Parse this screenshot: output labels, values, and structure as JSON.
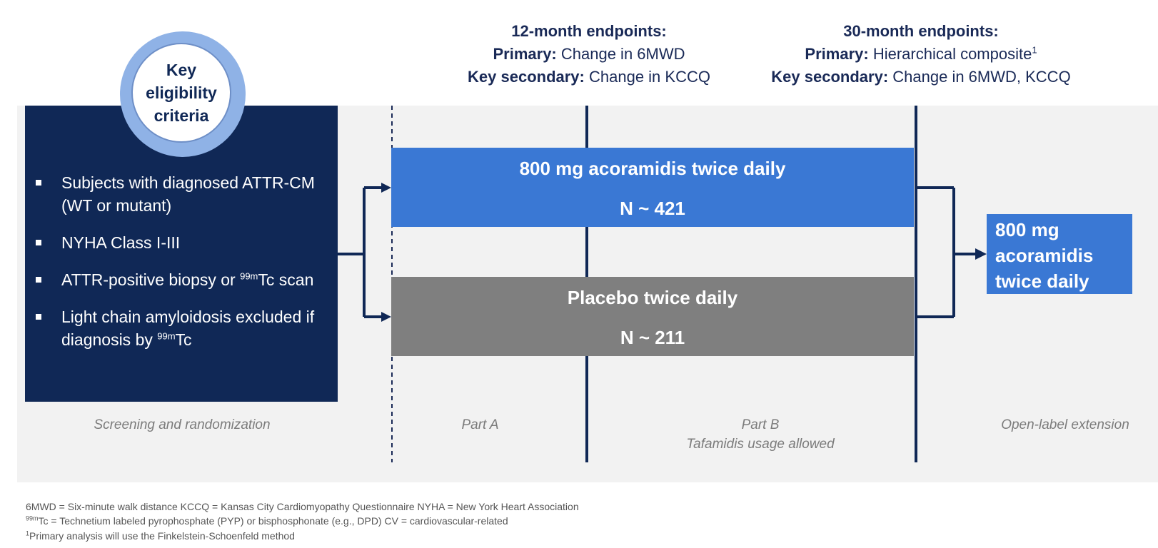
{
  "endpoints_12": {
    "title": "12-month endpoints:",
    "primary_label": "Primary:",
    "primary_value": " Change in 6MWD",
    "secondary_label": "Key secondary:",
    "secondary_value": " Change in KCCQ"
  },
  "endpoints_30": {
    "title": "30-month endpoints:",
    "primary_label": "Primary:",
    "primary_value": " Hierarchical composite",
    "primary_footnote": "1",
    "secondary_label": "Key secondary:",
    "secondary_value": " Change in 6MWD, KCCQ"
  },
  "eligibility": {
    "circle_line1": "Key",
    "circle_line2": "eligibility",
    "circle_line3": "criteria",
    "items": [
      {
        "text": "Subjects with diagnosed ATTR-CM (WT or mutant)"
      },
      {
        "text": "NYHA Class I-III"
      },
      {
        "pre": "ATTR-positive biopsy or ",
        "sup": "99m",
        "post": "Tc scan"
      },
      {
        "pre": "Light chain amyloidosis excluded if diagnosis by ",
        "sup": "99m",
        "post": "Tc"
      }
    ]
  },
  "arms": {
    "active_name": "800 mg acoramidis twice daily",
    "active_n": "N ~ 421",
    "placebo_name": "Placebo twice daily",
    "placebo_n": "N ~ 211"
  },
  "extension": {
    "line1": "800 mg",
    "line2": "acoramidis",
    "line3": "twice daily"
  },
  "phases": {
    "screening": "Screening and randomization",
    "part_a": "Part A",
    "part_b": "Part B",
    "part_b_note": "Tafamidis usage allowed",
    "ole": "Open-label extension"
  },
  "footnotes": {
    "line1": "6MWD = Six-minute walk distance  KCCQ = Kansas City Cardiomyopathy Questionnaire  NYHA = New York Heart Association",
    "line2_sup": "99m",
    "line2": "Tc = Technetium labeled pyrophosphate (PYP) or bisphosphonate (e.g., DPD) CV = cardiovascular-related",
    "line3_sup": "1",
    "line3": "Primary analysis will use the Finkelstein-Schoenfeld method"
  },
  "colors": {
    "navy": "#102856",
    "blue": "#3a78d4",
    "gray": "#7f7f7f",
    "panel": "#f2f2f2"
  }
}
